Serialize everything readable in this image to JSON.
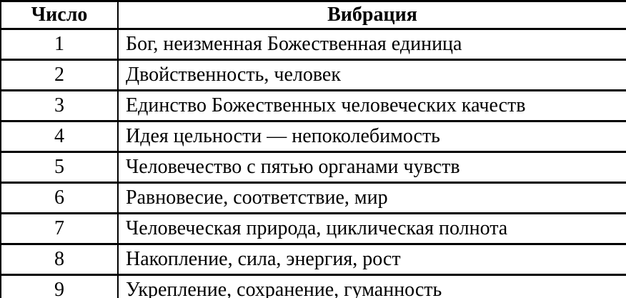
{
  "table": {
    "headers": {
      "number": "Число",
      "vibration": "Вибрация"
    },
    "rows": [
      {
        "number": "1",
        "vibration": "Бог, неизменная Божественная единица"
      },
      {
        "number": "2",
        "vibration": "Двойственность, человек"
      },
      {
        "number": "3",
        "vibration": "Единство Божественных человеческих качеств"
      },
      {
        "number": "4",
        "vibration": "Идея цельности — непоколебимость"
      },
      {
        "number": "5",
        "vibration": "Человечество с пятью органами чувств"
      },
      {
        "number": "6",
        "vibration": "Равновесие, соответствие, мир"
      },
      {
        "number": "7",
        "vibration": "Человеческая природа, циклическая полнота"
      },
      {
        "number": "8",
        "vibration": "Накопление, сила, энергия, рост"
      },
      {
        "number": "9",
        "vibration": "Укрепление, сохранение, гуманность"
      }
    ],
    "colors": {
      "border": "#000000",
      "text": "#000000",
      "background": "#ffffff"
    }
  }
}
